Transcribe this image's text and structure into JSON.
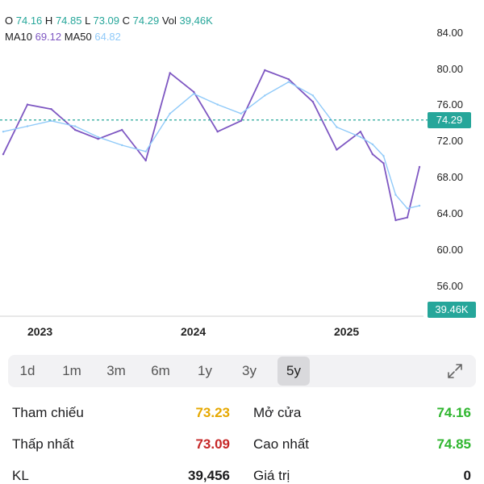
{
  "header": {
    "o_label": "O",
    "o_value": "74.16",
    "h_label": "H",
    "h_value": "74.85",
    "l_label": "L",
    "l_value": "73.09",
    "c_label": "C",
    "c_value": "74.29",
    "vol_label": "Vol",
    "vol_value": "39,46K",
    "ma10_label": "MA10",
    "ma10_value": "69.12",
    "ma50_label": "MA50",
    "ma50_value": "64.82"
  },
  "axis": {
    "y_ticks": [
      "84.00",
      "80.00",
      "76.00",
      "72.00",
      "68.00",
      "64.00",
      "60.00",
      "56.00"
    ],
    "x_ticks": [
      "2023",
      "2024",
      "2025"
    ]
  },
  "current_price_tag": "74.29",
  "volume_tag": "39.46K",
  "colors": {
    "up": "#26a69a",
    "down": "#ef5350",
    "ma10": "#7e57c2",
    "ma50": "#90caf9"
  },
  "chart_data": {
    "type": "line",
    "ylim": [
      54,
      86
    ],
    "current_price": 74.29,
    "series": [
      {
        "name": "MA10",
        "x": [
          "2022-07",
          "2022-09",
          "2022-11",
          "2023-01",
          "2023-03",
          "2023-05",
          "2023-07",
          "2023-09",
          "2023-11",
          "2024-01",
          "2024-03",
          "2024-05",
          "2024-07",
          "2024-09",
          "2024-11",
          "2025-01",
          "2025-02",
          "2025-03",
          "2025-04",
          "2025-05",
          "2025-06"
        ],
        "values": [
          70.5,
          76.0,
          75.5,
          73.2,
          72.2,
          73.2,
          69.8,
          79.5,
          77.4,
          73.0,
          74.2,
          79.8,
          78.8,
          76.3,
          71.0,
          73.0,
          70.5,
          69.5,
          63.2,
          63.5,
          69.1
        ]
      },
      {
        "name": "MA50",
        "x": [
          "2022-07",
          "2022-09",
          "2022-11",
          "2023-01",
          "2023-03",
          "2023-05",
          "2023-07",
          "2023-09",
          "2023-11",
          "2024-01",
          "2024-03",
          "2024-05",
          "2024-07",
          "2024-09",
          "2024-11",
          "2025-01",
          "2025-02",
          "2025-03",
          "2025-04",
          "2025-05",
          "2025-06"
        ],
        "values": [
          73.0,
          73.6,
          74.2,
          73.6,
          72.4,
          71.5,
          70.8,
          75.0,
          77.2,
          76.0,
          75.0,
          77.0,
          78.5,
          77.0,
          73.5,
          72.4,
          71.6,
          70.3,
          66.0,
          64.5,
          64.8
        ]
      }
    ]
  },
  "range_tabs": [
    "1d",
    "1m",
    "3m",
    "6m",
    "1y",
    "3y",
    "5y"
  ],
  "active_tab": "5y",
  "stats": {
    "ref_label": "Tham chiếu",
    "ref_value": "73.23",
    "open_label": "Mở cửa",
    "open_value": "74.16",
    "low_label": "Thấp nhất",
    "low_value": "73.09",
    "high_label": "Cao nhất",
    "high_value": "74.85",
    "kl_label": "KL",
    "kl_value": "39,456",
    "value_label": "Giá trị",
    "value_value": "0"
  }
}
